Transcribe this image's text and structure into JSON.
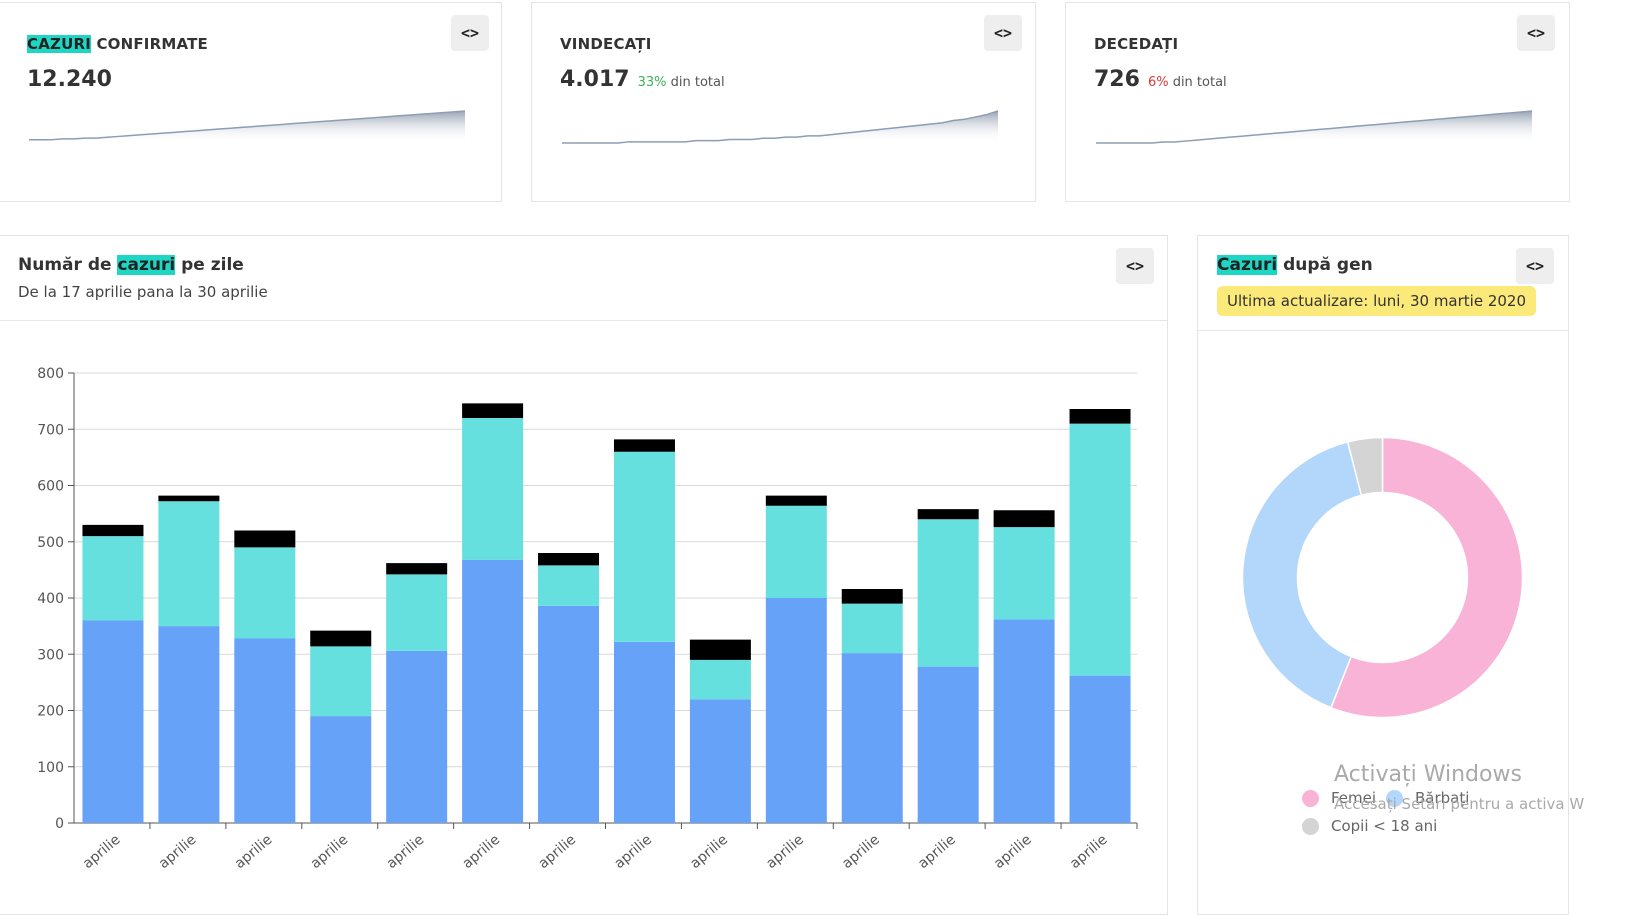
{
  "stats": [
    {
      "label_highlight": "CAZURI",
      "label_rest": " CONFIRMATE",
      "value": "12.240",
      "pct": "",
      "pct_suffix": "",
      "spark": [
        4,
        4,
        4,
        5,
        5,
        6,
        6,
        7,
        8,
        9,
        10,
        11,
        12,
        13,
        14,
        15,
        16,
        17,
        18,
        19,
        20,
        21,
        22,
        23,
        24,
        25,
        26,
        27,
        28,
        29,
        30,
        31,
        32,
        33,
        34,
        35,
        36,
        37,
        38,
        39
      ]
    },
    {
      "label_highlight": "",
      "label_rest": "VINDECAȚI",
      "value": "4.017",
      "pct": "33%",
      "pct_suffix": " din total",
      "spark": [
        0,
        0,
        0,
        0,
        0,
        0,
        1,
        1,
        1,
        1,
        1,
        1,
        2,
        2,
        2,
        3,
        3,
        3,
        4,
        4,
        5,
        5,
        6,
        6,
        7,
        8,
        9,
        10,
        11,
        12,
        13,
        14,
        15,
        16,
        17,
        19,
        20,
        22,
        24,
        27
      ]
    },
    {
      "label_highlight": "",
      "label_rest": "DECEDAȚI",
      "value": "726",
      "pct": "6%",
      "pct_suffix": " din total",
      "spark": [
        0,
        0,
        0,
        0,
        0,
        0,
        1,
        1,
        2,
        3,
        4,
        5,
        6,
        7,
        8,
        9,
        10,
        11,
        12,
        13,
        14,
        15,
        16,
        17,
        18,
        19,
        20,
        21,
        22,
        23,
        24,
        25,
        26,
        27,
        28,
        29,
        30,
        31,
        32,
        33
      ]
    }
  ],
  "code_button_label": "<>",
  "bar_panel": {
    "title_before": "Număr de ",
    "title_highlight": "cazuri",
    "title_after": " pe zile",
    "subtitle": "De la 17 aprilie pana la 30 aprilie"
  },
  "gender_panel": {
    "title_highlight": "Cazuri",
    "title_after": " după gen",
    "badge": "Ultima actualizare: luni, 30 martie 2020"
  },
  "chart_data": [
    {
      "type": "bar",
      "stacked": true,
      "categories": [
        "aprilie",
        "aprilie",
        "aprilie",
        "aprilie",
        "aprilie",
        "aprilie",
        "aprilie",
        "aprilie",
        "aprilie",
        "aprilie",
        "aprilie",
        "aprilie",
        "aprilie",
        "aprilie"
      ],
      "series": [
        {
          "color": "#66a3f8",
          "values": [
            360,
            350,
            328,
            190,
            306,
            468,
            386,
            322,
            220,
            400,
            302,
            278,
            362,
            262
          ]
        },
        {
          "color": "#66e0de",
          "values": [
            150,
            222,
            162,
            124,
            136,
            252,
            72,
            338,
            70,
            164,
            88,
            262,
            164,
            448
          ]
        },
        {
          "color": "#000000",
          "values": [
            20,
            10,
            30,
            28,
            20,
            26,
            22,
            22,
            36,
            18,
            26,
            18,
            30,
            26
          ]
        }
      ],
      "ylim": [
        0,
        800
      ],
      "yticks": [
        0,
        100,
        200,
        300,
        400,
        500,
        600,
        700,
        800
      ],
      "grid": true
    },
    {
      "type": "pie",
      "donut": true,
      "labels": [
        "Femei",
        "Bărbați",
        "Copii < 18 ani"
      ],
      "values": [
        56,
        40,
        4
      ],
      "colors": [
        "#f8b3d6",
        "#b3d6fb",
        "#d4d4d4"
      ],
      "legend": "bottom"
    }
  ],
  "watermark": {
    "line1": "Activați Windows",
    "line2": "Accesați Setări pentru a activa W"
  }
}
